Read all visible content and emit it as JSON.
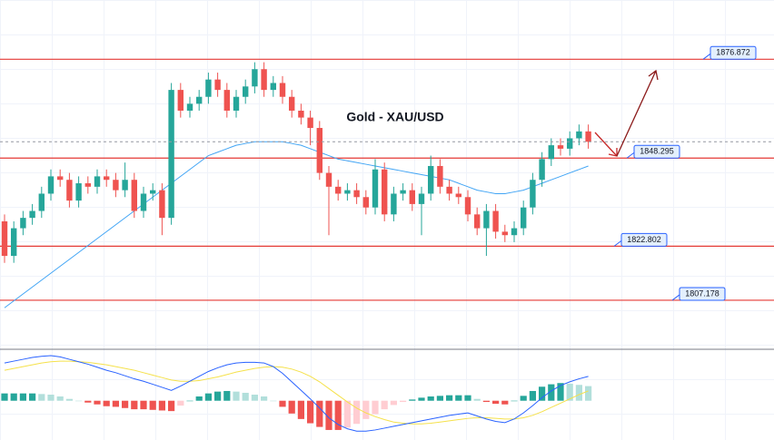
{
  "chart_data": {
    "type": "candlestick",
    "title": "Gold - XAU/USD",
    "ylim": [
      1793,
      1894
    ],
    "open": [
      1830,
      1820,
      1828,
      1831,
      1833,
      1838,
      1843,
      1842,
      1836,
      1841,
      1840,
      1843,
      1842,
      1839,
      1842,
      1833,
      1838,
      1839,
      1831,
      1868,
      1862,
      1864,
      1866,
      1871,
      1868,
      1862,
      1866,
      1869,
      1874,
      1868,
      1870,
      1866,
      1862,
      1860,
      1857,
      1844,
      1840,
      1838,
      1839,
      1837,
      1834,
      1845,
      1832,
      1838,
      1839,
      1835,
      1838,
      1846,
      1840,
      1838,
      1837,
      1832,
      1828,
      1833,
      1827,
      1826,
      1828,
      1834,
      1842,
      1848,
      1852,
      1851,
      1854,
      1856
    ],
    "high": [
      1832,
      1830,
      1833,
      1835,
      1840,
      1845,
      1845,
      1844,
      1843,
      1843,
      1845,
      1845,
      1844,
      1847,
      1844,
      1840,
      1841,
      1841,
      1870,
      1870,
      1866,
      1868,
      1873,
      1873,
      1870,
      1868,
      1871,
      1876,
      1876,
      1872,
      1872,
      1868,
      1864,
      1862,
      1859,
      1846,
      1842,
      1841,
      1841,
      1839,
      1848,
      1847,
      1840,
      1841,
      1841,
      1840,
      1849,
      1848,
      1842,
      1840,
      1839,
      1834,
      1835,
      1835,
      1829,
      1830,
      1836,
      1844,
      1850,
      1854,
      1854,
      1856,
      1858,
      1858
    ],
    "low": [
      1818,
      1818,
      1826,
      1829,
      1831,
      1836,
      1840,
      1834,
      1834,
      1838,
      1838,
      1840,
      1837,
      1837,
      1831,
      1831,
      1836,
      1826,
      1829,
      1860,
      1860,
      1862,
      1864,
      1866,
      1860,
      1860,
      1864,
      1867,
      1866,
      1866,
      1864,
      1860,
      1858,
      1852,
      1842,
      1826,
      1836,
      1836,
      1835,
      1832,
      1832,
      1830,
      1830,
      1836,
      1833,
      1826,
      1836,
      1838,
      1836,
      1835,
      1830,
      1826,
      1820,
      1825,
      1824,
      1824,
      1826,
      1832,
      1840,
      1846,
      1849,
      1849,
      1852,
      1851
    ],
    "close": [
      1820,
      1828,
      1831,
      1833,
      1838,
      1843,
      1842,
      1836,
      1841,
      1840,
      1843,
      1842,
      1839,
      1842,
      1833,
      1838,
      1839,
      1831,
      1868,
      1862,
      1864,
      1866,
      1871,
      1868,
      1862,
      1866,
      1869,
      1874,
      1868,
      1870,
      1866,
      1862,
      1860,
      1857,
      1844,
      1840,
      1838,
      1839,
      1837,
      1834,
      1845,
      1832,
      1838,
      1839,
      1835,
      1838,
      1846,
      1840,
      1838,
      1837,
      1832,
      1828,
      1833,
      1827,
      1826,
      1828,
      1834,
      1842,
      1848,
      1852,
      1851,
      1854,
      1856,
      1853
    ],
    "up_color": "#26a69a",
    "down_color": "#ef5350",
    "ma": [
      1805,
      1807,
      1809,
      1811,
      1813,
      1815,
      1817,
      1819,
      1821,
      1823,
      1825,
      1827,
      1829,
      1831,
      1833,
      1835,
      1837,
      1839,
      1841,
      1843,
      1845,
      1847,
      1849,
      1850,
      1851,
      1852,
      1852.5,
      1853,
      1853,
      1853,
      1853,
      1852.5,
      1852,
      1851,
      1850,
      1849,
      1848,
      1847.5,
      1847,
      1846.5,
      1846,
      1845.5,
      1845,
      1844.5,
      1844,
      1843.5,
      1843,
      1842.5,
      1842,
      1841,
      1840,
      1839,
      1838.5,
      1838,
      1838,
      1838.5,
      1839,
      1840,
      1841,
      1842,
      1843,
      1844,
      1845,
      1846
    ],
    "ma_color": "#42a5f5",
    "levels": [
      1876.872,
      1848.295,
      1822.802,
      1807.178
    ],
    "level_color": "#e53935",
    "macd": {
      "ylim": [
        -6,
        8
      ],
      "macd": [
        6.2,
        6.5,
        6.8,
        7.1,
        7.3,
        7.4,
        7.2,
        6.8,
        6.4,
        6,
        5.5,
        5,
        4.6,
        4.1,
        3.6,
        3.2,
        2.7,
        2.2,
        1.7,
        2.4,
        3.2,
        4,
        4.8,
        5.4,
        5.9,
        6.2,
        6.3,
        6.3,
        6.2,
        5.6,
        4.5,
        3.1,
        1.7,
        0.3,
        -1.2,
        -2.8,
        -3.9,
        -4.6,
        -5,
        -5,
        -4.8,
        -4.5,
        -4.2,
        -3.9,
        -3.6,
        -3.3,
        -3,
        -2.7,
        -2.4,
        -2.2,
        -2,
        -2.5,
        -3,
        -3.4,
        -3.6,
        -3,
        -2,
        -0.8,
        0.5,
        1.6,
        2.5,
        3.1,
        3.6,
        4
      ],
      "signal": [
        5,
        5.3,
        5.6,
        5.9,
        6.2,
        6.4,
        6.5,
        6.5,
        6.4,
        6.3,
        6.1,
        5.9,
        5.6,
        5.3,
        5,
        4.6,
        4.2,
        3.8,
        3.4,
        3.2,
        3.2,
        3.3,
        3.6,
        3.9,
        4.3,
        4.7,
        5,
        5.3,
        5.5,
        5.6,
        5.5,
        5.2,
        4.7,
        4,
        3.1,
        2,
        0.9,
        -0.2,
        -1.2,
        -2,
        -2.6,
        -3.1,
        -3.5,
        -3.7,
        -3.8,
        -3.8,
        -3.7,
        -3.5,
        -3.3,
        -3.1,
        -2.9,
        -2.8,
        -2.8,
        -2.9,
        -3,
        -3,
        -2.8,
        -2.4,
        -1.8,
        -1.1,
        -0.4,
        0.3,
        1,
        1.6
      ],
      "histogram": [
        1.2,
        1.2,
        1.2,
        1.2,
        1.1,
        1,
        0.7,
        0.3,
        0,
        -0.3,
        -0.6,
        -0.9,
        -1,
        -1.2,
        -1.4,
        -1.4,
        -1.5,
        -1.6,
        -1.7,
        -0.8,
        0,
        0.7,
        1.2,
        1.5,
        1.6,
        1.5,
        1.3,
        1,
        0.7,
        0,
        -1,
        -2.1,
        -3,
        -3.7,
        -4.3,
        -4.8,
        -4.8,
        -4.4,
        -3.8,
        -3,
        -2.2,
        -1.4,
        -0.7,
        -0.2,
        0.2,
        0.5,
        0.7,
        0.8,
        0.9,
        0.9,
        0.9,
        0.3,
        -0.2,
        -0.5,
        -0.6,
        0,
        0.8,
        1.6,
        2.3,
        2.7,
        2.9,
        2.8,
        2.6,
        2.4
      ],
      "macd_color": "#2962ff",
      "signal_color": "#f5e14a",
      "hist_colors": [
        "#26a69a",
        "#b2dfdb",
        "#ef5350",
        "#ffcdd2"
      ]
    }
  }
}
